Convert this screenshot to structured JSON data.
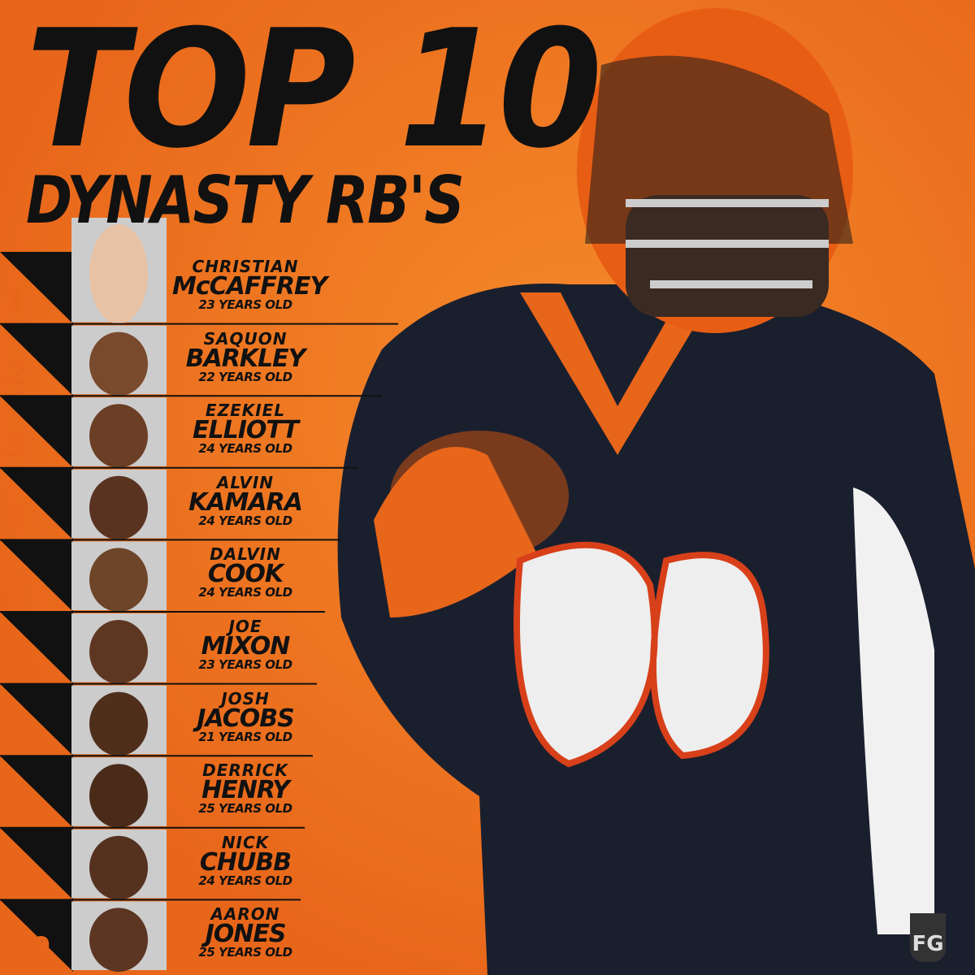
{
  "title": {
    "line1": "TOP 10",
    "line2": "DYNASTY RB'S"
  },
  "rankings": [
    {
      "rank": "1",
      "first_name": "CHRISTIAN",
      "last_name": "McCAFFREY",
      "age": "23 YEARS OLD"
    },
    {
      "rank": "2",
      "first_name": "SAQUON",
      "last_name": "BARKLEY",
      "age": "22 YEARS OLD"
    },
    {
      "rank": "3",
      "first_name": "EZEKIEL",
      "last_name": "ELLIOTT",
      "age": "24 YEARS OLD"
    },
    {
      "rank": "4",
      "first_name": "ALVIN",
      "last_name": "KAMARA",
      "age": "24 YEARS OLD"
    },
    {
      "rank": "5",
      "first_name": "DALVIN",
      "last_name": "COOK",
      "age": "24 YEARS OLD"
    },
    {
      "rank": "6",
      "first_name": "JOE",
      "last_name": "MIXON",
      "age": "23 YEARS OLD"
    },
    {
      "rank": "7",
      "first_name": "JOSH",
      "last_name": "JACOBS",
      "age": "21 YEARS OLD"
    },
    {
      "rank": "8",
      "first_name": "DERRICK",
      "last_name": "HENRY",
      "age": "25 YEARS OLD"
    },
    {
      "rank": "9",
      "first_name": "NICK",
      "last_name": "CHUBB",
      "age": "24 YEARS OLD"
    },
    {
      "rank": "10",
      "first_name": "AARON",
      "last_name": "JONES",
      "age": "25 YEARS OLD"
    }
  ],
  "logo": {
    "text": "FG"
  }
}
